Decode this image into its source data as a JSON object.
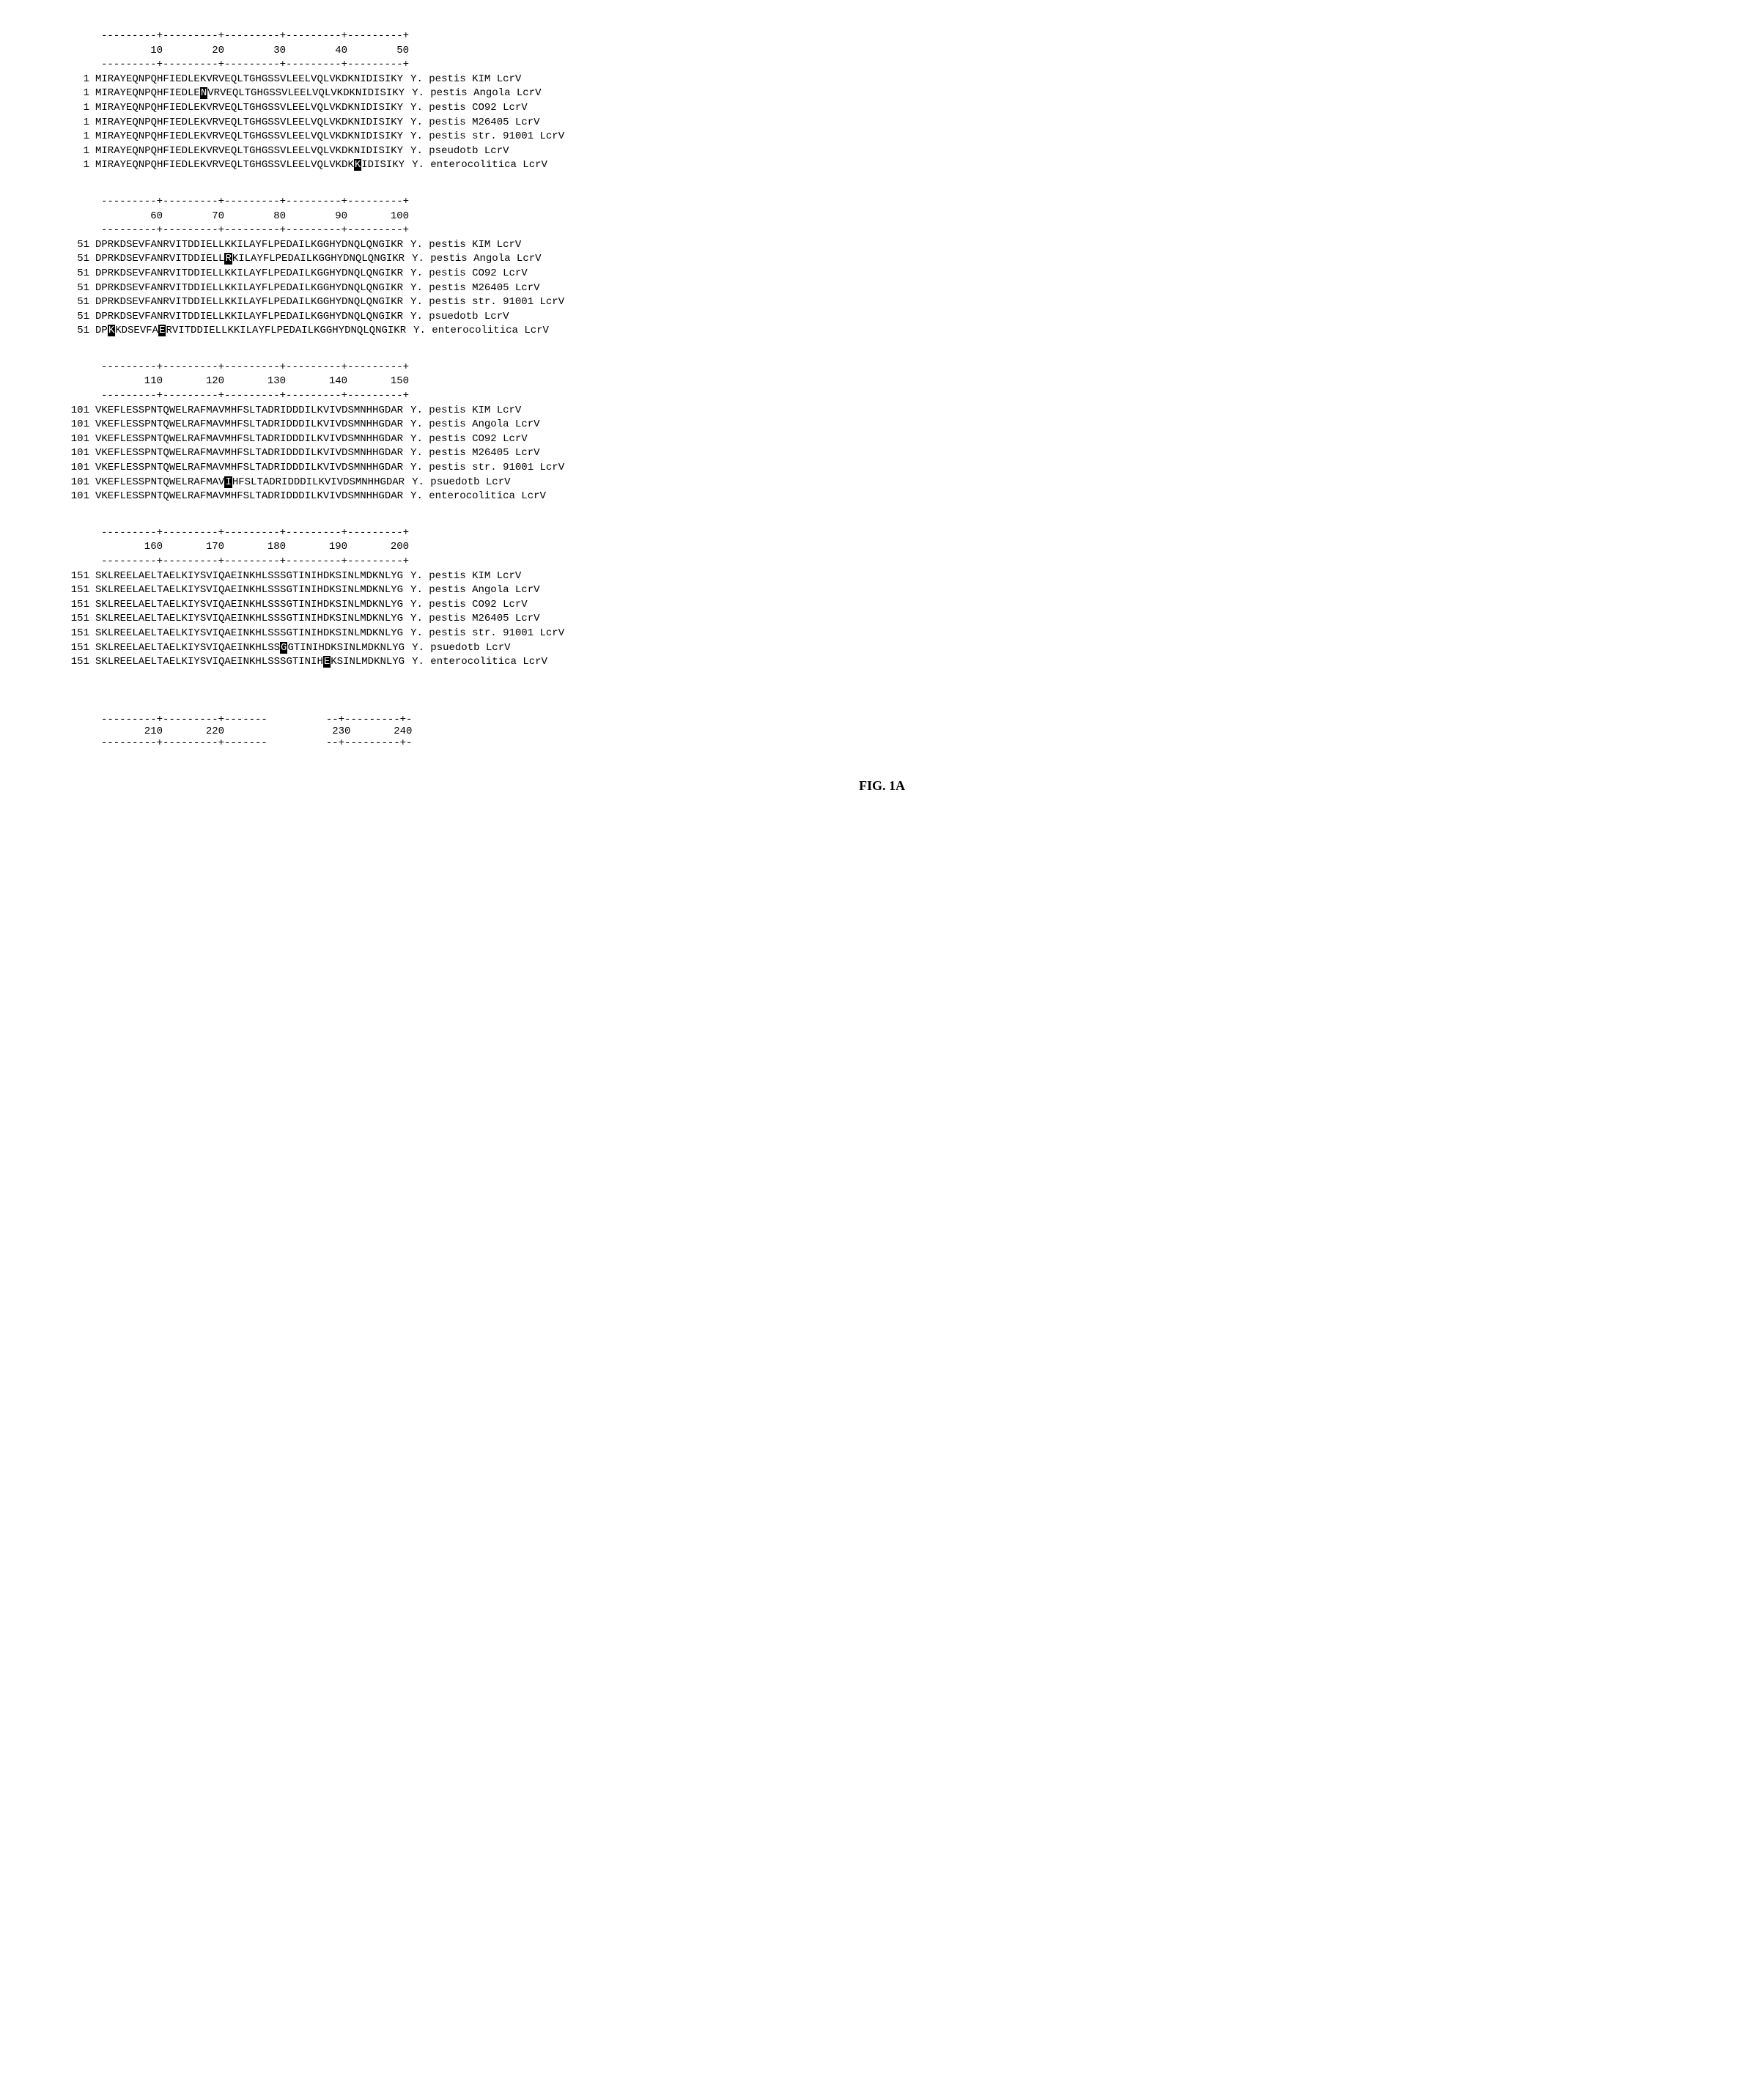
{
  "figure_caption": "FIG. 1A",
  "blocks": [
    {
      "ruler_top": "---------+---------+---------+---------+---------+",
      "ruler_nums": "        10        20        30        40        50",
      "ruler_bottom": "---------+---------+---------+---------+---------+",
      "rows": [
        {
          "pos": "1",
          "parts": [
            {
              "t": "MIRAYEQNPQHFIEDLEKVRVEQLTGHGSSVLEELVQLVKDKNIDISIKY"
            }
          ],
          "label": "Y. pestis KIM LcrV"
        },
        {
          "pos": "1",
          "parts": [
            {
              "t": "MIRAYEQNPQHFIEDLE"
            },
            {
              "t": "N",
              "h": true
            },
            {
              "t": "VRVEQLTGHGSSVLEELVQLVKDKNIDISIKY"
            }
          ],
          "label": "Y. pestis Angola LcrV"
        },
        {
          "pos": "1",
          "parts": [
            {
              "t": "MIRAYEQNPQHFIEDLEKVRVEQLTGHGSSVLEELVQLVKDKNIDISIKY"
            }
          ],
          "label": "Y. pestis CO92 LcrV"
        },
        {
          "pos": "1",
          "parts": [
            {
              "t": "MIRAYEQNPQHFIEDLEKVRVEQLTGHGSSVLEELVQLVKDKNIDISIKY"
            }
          ],
          "label": "Y. pestis M26405 LcrV"
        },
        {
          "pos": "1",
          "parts": [
            {
              "t": "MIRAYEQNPQHFIEDLEKVRVEQLTGHGSSVLEELVQLVKDKNIDISIKY"
            }
          ],
          "label": "Y. pestis str. 91001 LcrV"
        },
        {
          "pos": "1",
          "parts": [
            {
              "t": "MIRAYEQNPQHFIEDLEKVRVEQLTGHGSSVLEELVQLVKDKNIDISIKY"
            }
          ],
          "label": "Y. pseudotb LcrV"
        },
        {
          "pos": "1",
          "parts": [
            {
              "t": "MIRAYEQNPQHFIEDLEKVRVEQLTGHGSSVLEELVQLVKDK"
            },
            {
              "t": "K",
              "h": true
            },
            {
              "t": "IDISIKY"
            }
          ],
          "label": "Y. enterocolitica LcrV"
        }
      ]
    },
    {
      "ruler_top": "---------+---------+---------+---------+---------+",
      "ruler_nums": "        60        70        80        90       100",
      "ruler_bottom": "---------+---------+---------+---------+---------+",
      "rows": [
        {
          "pos": "51",
          "parts": [
            {
              "t": "DPRKDSEVFANRVITDDIELLKKILAYFLPEDAILKGGHYDNQLQNGIKR"
            }
          ],
          "label": "Y. pestis KIM LcrV"
        },
        {
          "pos": "51",
          "parts": [
            {
              "t": "DPRKDSEVFANRVITDDIELL"
            },
            {
              "t": "R",
              "h": true
            },
            {
              "t": "KILAYFLPEDAILKGGHYDNQLQNGIKR"
            }
          ],
          "label": "Y. pestis Angola LcrV"
        },
        {
          "pos": "51",
          "parts": [
            {
              "t": "DPRKDSEVFANRVITDDIELLKKILAYFLPEDAILKGGHYDNQLQNGIKR"
            }
          ],
          "label": "Y. pestis CO92 LcrV"
        },
        {
          "pos": "51",
          "parts": [
            {
              "t": "DPRKDSEVFANRVITDDIELLKKILAYFLPEDAILKGGHYDNQLQNGIKR"
            }
          ],
          "label": "Y. pestis M26405 LcrV"
        },
        {
          "pos": "51",
          "parts": [
            {
              "t": "DPRKDSEVFANRVITDDIELLKKILAYFLPEDAILKGGHYDNQLQNGIKR"
            }
          ],
          "label": "Y. pestis str. 91001 LcrV"
        },
        {
          "pos": "51",
          "parts": [
            {
              "t": "DPRKDSEVFANRVITDDIELLKKILAYFLPEDAILKGGHYDNQLQNGIKR"
            }
          ],
          "label": "Y. psuedotb LcrV"
        },
        {
          "pos": "51",
          "parts": [
            {
              "t": "DP"
            },
            {
              "t": "K",
              "h": true
            },
            {
              "t": "KDSEVFA"
            },
            {
              "t": "E",
              "h": true
            },
            {
              "t": "RVITDDIELLKKILAYFLPEDAILKGGHYDNQLQNGIKR"
            }
          ],
          "label": "Y. enterocolitica LcrV"
        }
      ]
    },
    {
      "ruler_top": "---------+---------+---------+---------+---------+",
      "ruler_nums": "       110       120       130       140       150",
      "ruler_bottom": "---------+---------+---------+---------+---------+",
      "rows": [
        {
          "pos": "101",
          "parts": [
            {
              "t": "VKEFLESSPNTQWELRAFMAVMHFSLTADRIDDDILKVIVDSMNHHGDAR"
            }
          ],
          "label": "Y. pestis KIM LcrV"
        },
        {
          "pos": "101",
          "parts": [
            {
              "t": "VKEFLESSPNTQWELRAFMAVMHFSLTADRIDDDILKVIVDSMNHHGDAR"
            }
          ],
          "label": "Y. pestis Angola LcrV"
        },
        {
          "pos": "101",
          "parts": [
            {
              "t": "VKEFLESSPNTQWELRAFMAVMHFSLTADRIDDDILKVIVDSMNHHGDAR"
            }
          ],
          "label": "Y. pestis CO92 LcrV"
        },
        {
          "pos": "101",
          "parts": [
            {
              "t": "VKEFLESSPNTQWELRAFMAVMHFSLTADRIDDDILKVIVDSMNHHGDAR"
            }
          ],
          "label": "Y. pestis M26405 LcrV"
        },
        {
          "pos": "101",
          "parts": [
            {
              "t": "VKEFLESSPNTQWELRAFMAVMHFSLTADRIDDDILKVIVDSMNHHGDAR"
            }
          ],
          "label": "Y. pestis str. 91001 LcrV"
        },
        {
          "pos": "101",
          "parts": [
            {
              "t": "VKEFLESSPNTQWELRAFMAV"
            },
            {
              "t": "I",
              "h": true
            },
            {
              "t": "HFSLTADRIDDDILKVIVDSMNHHGDAR"
            }
          ],
          "label": "Y. psuedotb LcrV"
        },
        {
          "pos": "101",
          "parts": [
            {
              "t": "VKEFLESSPNTQWELRAFMAVMHFSLTADRIDDDILKVIVDSMNHHGDAR"
            }
          ],
          "label": "Y. enterocolitica LcrV"
        }
      ]
    },
    {
      "ruler_top": "---------+---------+---------+---------+---------+",
      "ruler_nums": "       160       170       180       190       200",
      "ruler_bottom": "---------+---------+---------+---------+---------+",
      "rows": [
        {
          "pos": "151",
          "parts": [
            {
              "t": "SKLREELAELTAELKIYSVIQAEINKHLSSSGTINIHDKSINLMDKNLYG"
            }
          ],
          "label": "Y. pestis KIM LcrV"
        },
        {
          "pos": "151",
          "parts": [
            {
              "t": "SKLREELAELTAELKIYSVIQAEINKHLSSSGTINIHDKSINLMDKNLYG"
            }
          ],
          "label": "Y. pestis Angola LcrV"
        },
        {
          "pos": "151",
          "parts": [
            {
              "t": "SKLREELAELTAELKIYSVIQAEINKHLSSSGTINIHDKSINLMDKNLYG"
            }
          ],
          "label": "Y. pestis CO92 LcrV"
        },
        {
          "pos": "151",
          "parts": [
            {
              "t": "SKLREELAELTAELKIYSVIQAEINKHLSSSGTINIHDKSINLMDKNLYG"
            }
          ],
          "label": "Y. pestis M26405 LcrV"
        },
        {
          "pos": "151",
          "parts": [
            {
              "t": "SKLREELAELTAELKIYSVIQAEINKHLSSSGTINIHDKSINLMDKNLYG"
            }
          ],
          "label": "Y. pestis str. 91001 LcrV"
        },
        {
          "pos": "151",
          "parts": [
            {
              "t": "SKLREELAELTAELKIYSVIQAEINKHLSS"
            },
            {
              "t": "G",
              "h": true
            },
            {
              "t": "GTINIHDKSINLMDKNLYG"
            }
          ],
          "label": "Y. psuedotb LcrV"
        },
        {
          "pos": "151",
          "parts": [
            {
              "t": "SKLREELAELTAELKIYSVIQAEINKHLSSSGTINIH"
            },
            {
              "t": "E",
              "h": true
            },
            {
              "t": "KSINLMDKNLYG"
            }
          ],
          "label": "Y. enterocolitica LcrV"
        }
      ]
    }
  ],
  "bottom_rulers": [
    {
      "top": "---------+---------+-------",
      "nums": "       210       220",
      "bottom": "---------+---------+-------"
    },
    {
      "top": "--+---------+-",
      "nums": " 230       240",
      "bottom": "--+---------+-"
    }
  ]
}
